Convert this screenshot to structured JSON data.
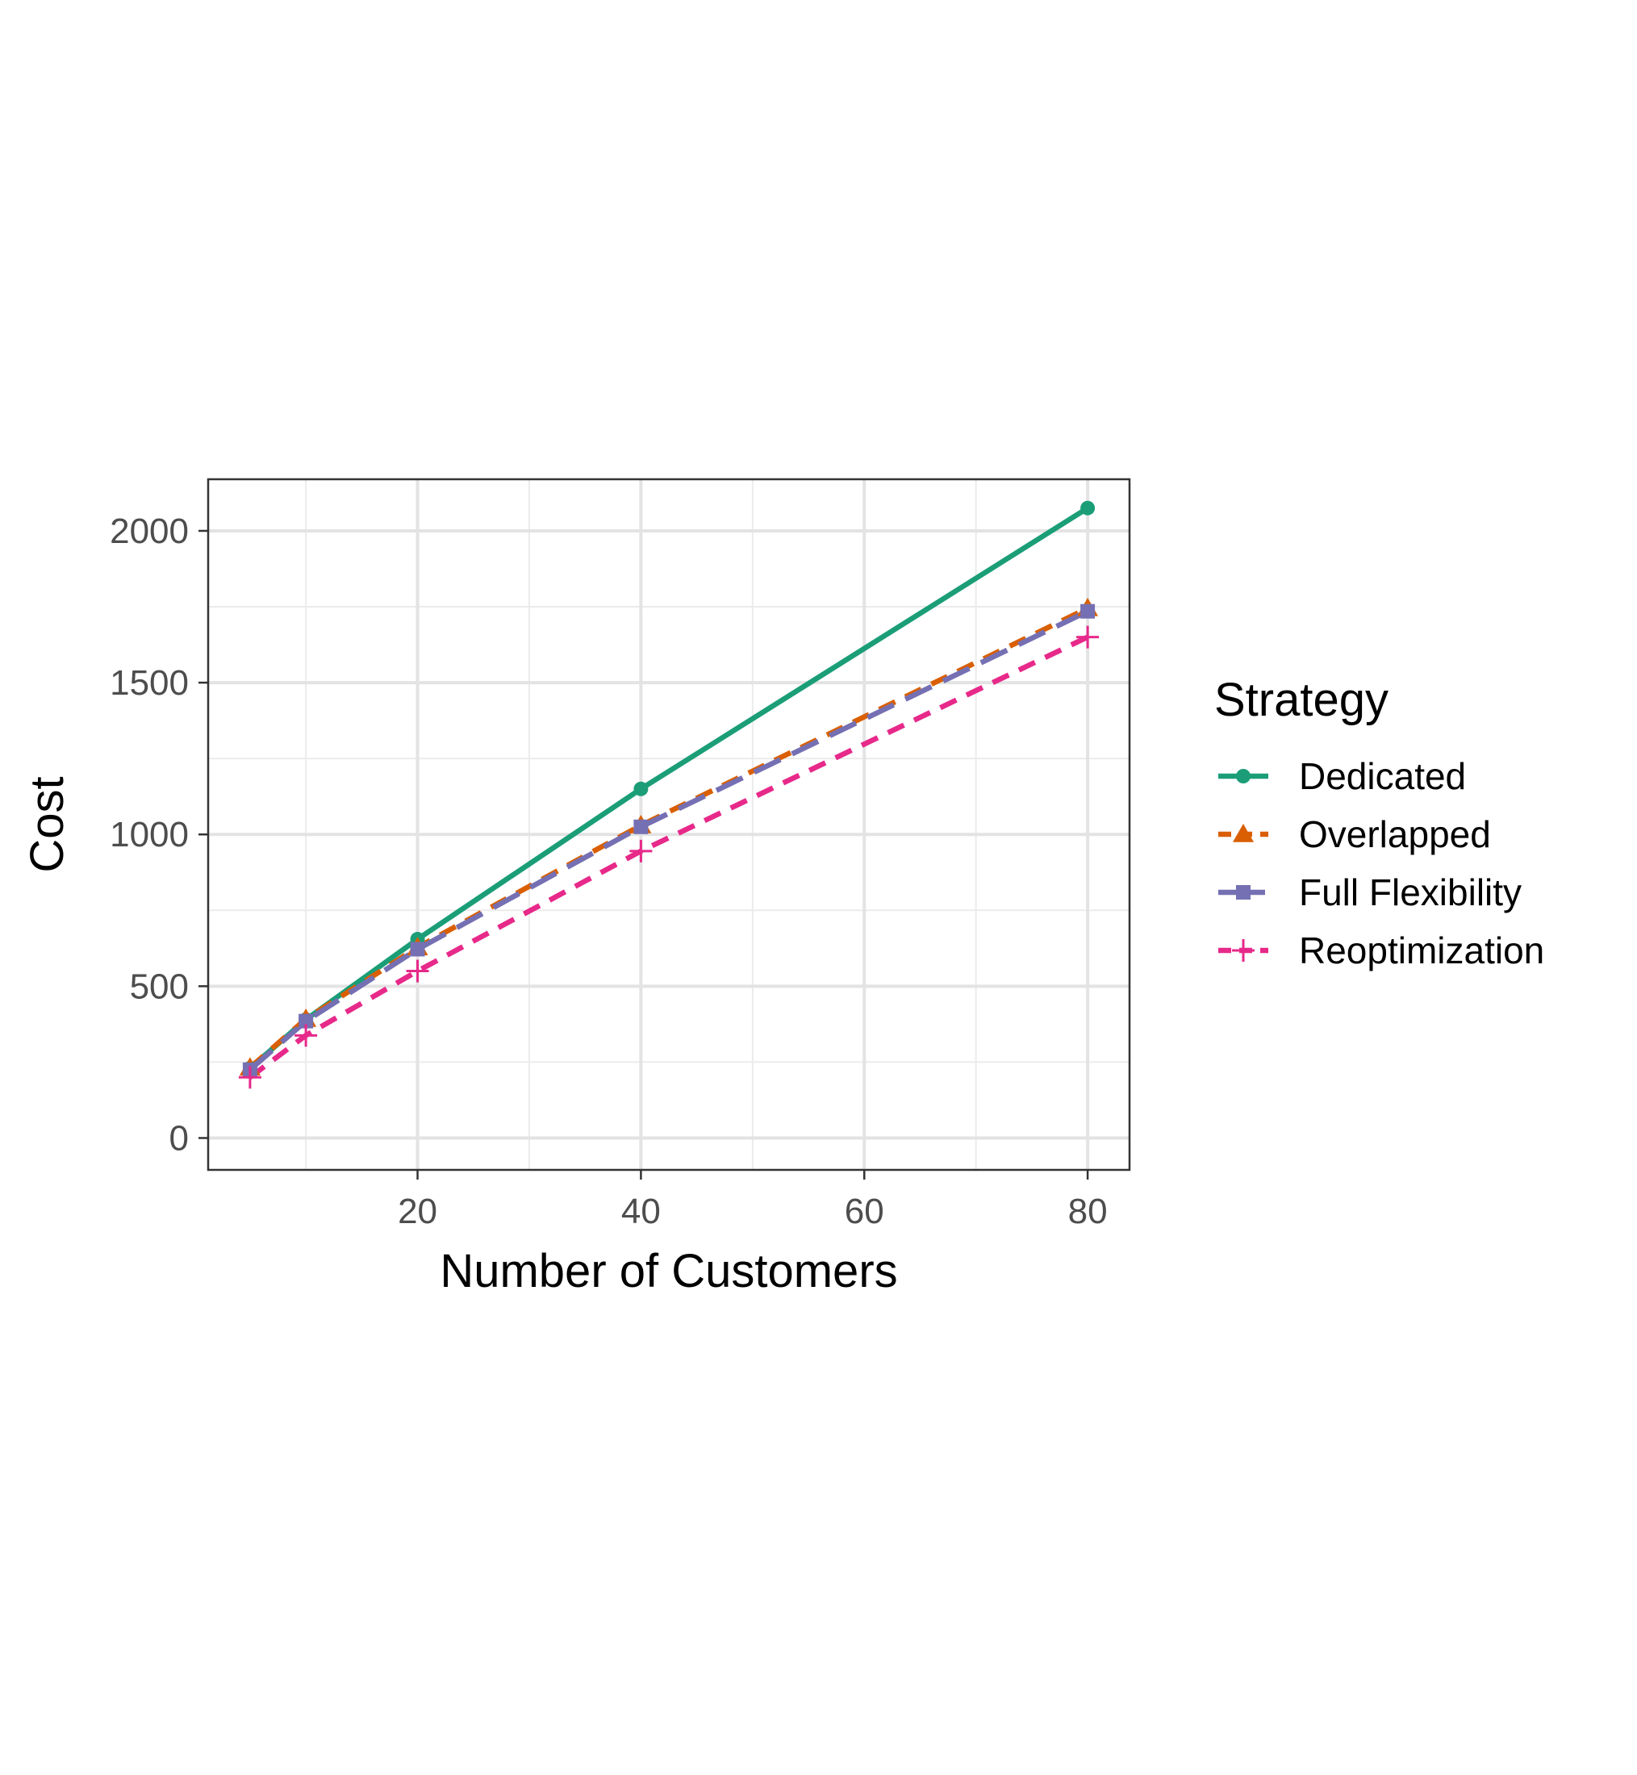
{
  "chart_data": {
    "type": "line",
    "xlabel": "Number of Customers",
    "ylabel": "Cost",
    "xlim": [
      1.25,
      83.75
    ],
    "ylim": [
      -105,
      2170
    ],
    "x_ticks": [
      20,
      40,
      60,
      80
    ],
    "x_tick_labels": [
      "20",
      "40",
      "60",
      "80"
    ],
    "y_ticks": [
      0,
      500,
      1000,
      1500,
      2000
    ],
    "y_tick_labels": [
      "0",
      "500",
      "1000",
      "1500",
      "2000"
    ],
    "x_minor_gridlines": [
      10,
      30,
      50,
      70
    ],
    "y_minor_gridlines": [
      250,
      750,
      1250,
      1750
    ],
    "grid": true,
    "legend": {
      "title": "Strategy",
      "placement": "right"
    },
    "x": [
      5,
      10,
      20,
      40,
      80
    ],
    "series": [
      {
        "name": "Dedicated",
        "values": [
          230,
          390,
          655,
          1150,
          2075
        ],
        "color": "#1B9E77",
        "line_style": "solid",
        "marker": "circle"
      },
      {
        "name": "Overlapped",
        "values": [
          232,
          392,
          628,
          1030,
          1745
        ],
        "color": "#D95F02",
        "line_style": "dashed",
        "marker": "triangle"
      },
      {
        "name": "Full Flexibility",
        "values": [
          225,
          385,
          622,
          1025,
          1735
        ],
        "color": "#7570B3",
        "line_style": "longdash",
        "marker": "square"
      },
      {
        "name": "Reoptimization",
        "values": [
          200,
          338,
          550,
          945,
          1650
        ],
        "color": "#E7298A",
        "line_style": "dashed",
        "marker": "plus"
      }
    ]
  }
}
